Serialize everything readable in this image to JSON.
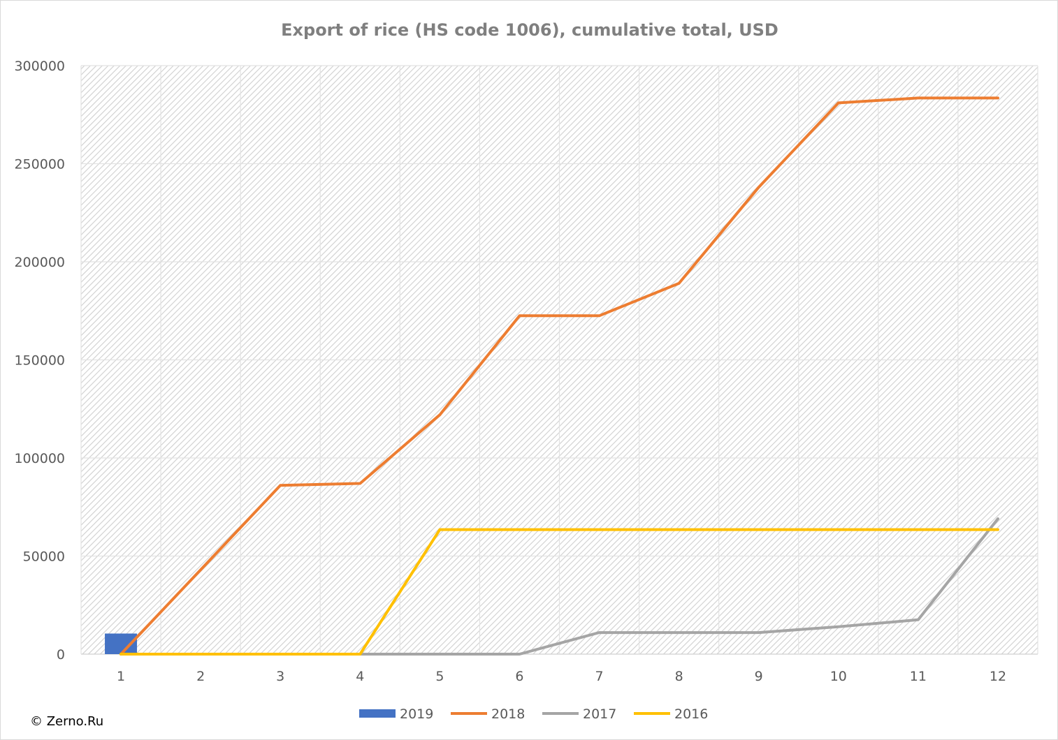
{
  "chart_data": {
    "type": "line",
    "title": "Export of rice (HS code 1006), cumulative total, USD",
    "xlabel": "",
    "ylabel": "",
    "categories": [
      "1",
      "2",
      "3",
      "4",
      "5",
      "6",
      "7",
      "8",
      "9",
      "10",
      "11",
      "12"
    ],
    "ylim": [
      0,
      300000
    ],
    "yticks": [
      "0",
      "50000",
      "100000",
      "150000",
      "200000",
      "250000",
      "300000"
    ],
    "grid": true,
    "legend_position": "bottom",
    "series": [
      {
        "name": "2019",
        "type": "bar",
        "color": "#4472c4",
        "values": [
          10500,
          null,
          null,
          null,
          null,
          null,
          null,
          null,
          null,
          null,
          null,
          null
        ]
      },
      {
        "name": "2018",
        "type": "line",
        "color": "#ed7d31",
        "values": [
          0,
          43000,
          86000,
          87000,
          122000,
          172500,
          172500,
          189000,
          238000,
          281000,
          283500,
          283500
        ]
      },
      {
        "name": "2017",
        "type": "line",
        "color": "#a5a5a5",
        "values": [
          0,
          0,
          0,
          0,
          0,
          0,
          11000,
          11000,
          11000,
          14000,
          17500,
          69000
        ]
      },
      {
        "name": "2016",
        "type": "line",
        "color": "#ffc000",
        "values": [
          0,
          0,
          0,
          0,
          63500,
          63500,
          63500,
          63500,
          63500,
          63500,
          63500,
          63500
        ]
      }
    ]
  },
  "footer": {
    "copyright": "© Zerno.Ru"
  }
}
